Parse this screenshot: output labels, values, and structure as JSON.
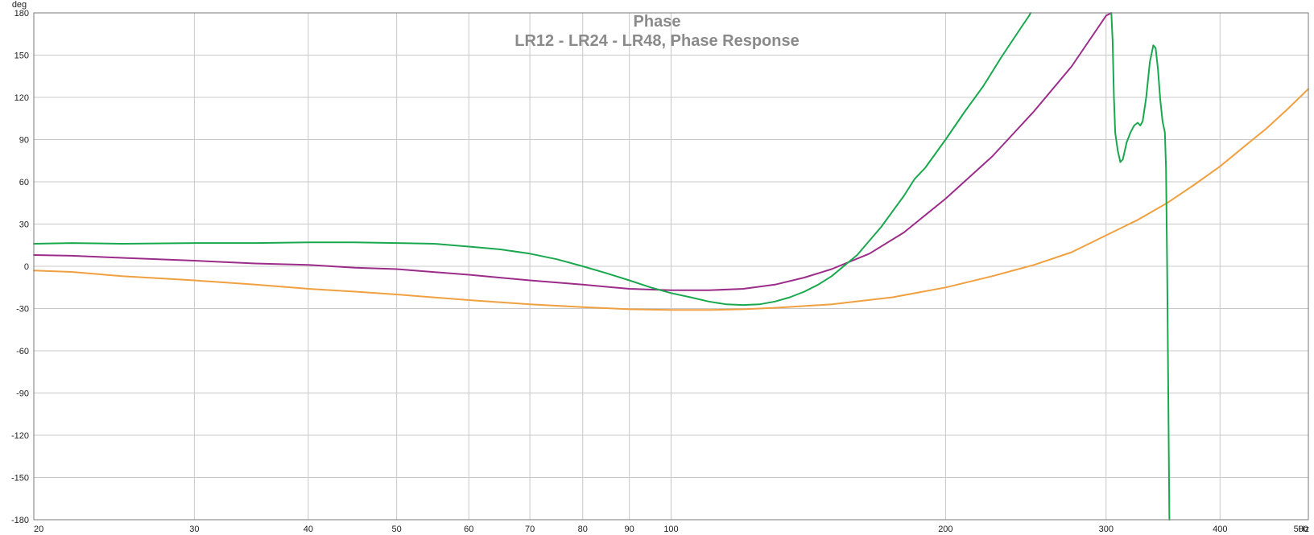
{
  "chart_data": {
    "type": "line",
    "title": "Phase",
    "subtitle": "LR12 - LR24 - LR48, Phase Response",
    "ylabel": "deg",
    "xunit": "Hz",
    "xscale": "log",
    "xlim": [
      20,
      500
    ],
    "ylim": [
      -180,
      180
    ],
    "grid": true,
    "x_ticks": [
      20,
      30,
      40,
      50,
      60,
      70,
      80,
      90,
      100,
      200,
      300,
      400,
      500
    ],
    "x_tick_labels": [
      "20",
      "30",
      "40",
      "50",
      "60",
      "70",
      "80",
      "90",
      "100",
      "200",
      "300",
      "400",
      "500"
    ],
    "y_ticks": [
      180,
      150,
      120,
      90,
      60,
      30,
      0,
      -30,
      -60,
      -90,
      -120,
      -150,
      -180
    ],
    "y_tick_labels": [
      "180",
      "150",
      "120",
      "90",
      "60",
      "30",
      "0",
      "-30",
      "-60",
      "-90",
      "-120",
      "-150",
      "-180"
    ],
    "series": [
      {
        "color": "#f0a040",
        "points": [
          [
            20,
            -3
          ],
          [
            22,
            -4
          ],
          [
            25,
            -7
          ],
          [
            30,
            -10
          ],
          [
            35,
            -13
          ],
          [
            40,
            -16
          ],
          [
            45,
            -18
          ],
          [
            50,
            -20
          ],
          [
            60,
            -24
          ],
          [
            70,
            -27
          ],
          [
            80,
            -29
          ],
          [
            90,
            -30.5
          ],
          [
            100,
            -31
          ],
          [
            110,
            -31
          ],
          [
            120,
            -30.5
          ],
          [
            130,
            -29.5
          ],
          [
            150,
            -27
          ],
          [
            175,
            -22
          ],
          [
            200,
            -15
          ],
          [
            225,
            -7
          ],
          [
            250,
            1
          ],
          [
            275,
            10
          ],
          [
            300,
            22
          ],
          [
            325,
            33
          ],
          [
            350,
            45
          ],
          [
            375,
            58
          ],
          [
            400,
            71
          ],
          [
            425,
            85
          ],
          [
            450,
            98
          ],
          [
            475,
            112
          ],
          [
            500,
            126
          ]
        ]
      },
      {
        "color": "#9b2c8a",
        "points": [
          [
            20,
            8
          ],
          [
            22,
            7.5
          ],
          [
            25,
            6
          ],
          [
            30,
            4
          ],
          [
            35,
            2
          ],
          [
            40,
            1
          ],
          [
            45,
            -1
          ],
          [
            50,
            -2
          ],
          [
            60,
            -6
          ],
          [
            70,
            -10
          ],
          [
            80,
            -13
          ],
          [
            90,
            -16
          ],
          [
            100,
            -17
          ],
          [
            110,
            -17
          ],
          [
            120,
            -16
          ],
          [
            130,
            -13
          ],
          [
            140,
            -8
          ],
          [
            150,
            -2
          ],
          [
            165,
            9
          ],
          [
            180,
            24
          ],
          [
            200,
            48
          ],
          [
            225,
            78
          ],
          [
            250,
            110
          ],
          [
            275,
            142
          ],
          [
            300,
            178
          ],
          [
            304,
            180
          ]
        ]
      },
      {
        "color": "#1aa84e",
        "points": [
          [
            20,
            16
          ],
          [
            22,
            16.5
          ],
          [
            25,
            16
          ],
          [
            30,
            16.5
          ],
          [
            35,
            16.5
          ],
          [
            40,
            17
          ],
          [
            45,
            17
          ],
          [
            50,
            16.5
          ],
          [
            55,
            16
          ],
          [
            60,
            14
          ],
          [
            65,
            12
          ],
          [
            70,
            9
          ],
          [
            75,
            5
          ],
          [
            80,
            0
          ],
          [
            85,
            -5
          ],
          [
            90,
            -10
          ],
          [
            95,
            -15
          ],
          [
            100,
            -19
          ],
          [
            105,
            -22
          ],
          [
            110,
            -25
          ],
          [
            115,
            -27
          ],
          [
            120,
            -27.5
          ],
          [
            125,
            -27
          ],
          [
            130,
            -25
          ],
          [
            135,
            -22
          ],
          [
            140,
            -18
          ],
          [
            145,
            -13
          ],
          [
            150,
            -7
          ],
          [
            160,
            8
          ],
          [
            170,
            28
          ],
          [
            180,
            50
          ],
          [
            185,
            62
          ],
          [
            190,
            70
          ],
          [
            200,
            90
          ],
          [
            210,
            110
          ],
          [
            220,
            128
          ],
          [
            230,
            148
          ],
          [
            240,
            166
          ],
          [
            247,
            178
          ],
          [
            248,
            180
          ]
        ]
      },
      {
        "color": "#1aa84e",
        "points": [
          [
            304,
            180
          ],
          [
            305,
            160
          ],
          [
            306,
            120
          ],
          [
            307,
            95
          ],
          [
            309,
            82
          ],
          [
            311,
            74
          ],
          [
            313,
            76
          ],
          [
            316,
            88
          ],
          [
            319,
            95
          ],
          [
            322,
            100
          ],
          [
            325,
            102
          ],
          [
            327,
            100
          ],
          [
            329,
            103
          ],
          [
            332,
            120
          ],
          [
            335,
            145
          ],
          [
            338,
            157
          ],
          [
            340,
            155
          ],
          [
            342,
            140
          ],
          [
            344,
            118
          ],
          [
            346,
            103
          ],
          [
            348,
            95
          ],
          [
            349,
            70
          ],
          [
            350,
            0
          ],
          [
            351,
            -90
          ],
          [
            352,
            -180
          ]
        ]
      }
    ]
  }
}
